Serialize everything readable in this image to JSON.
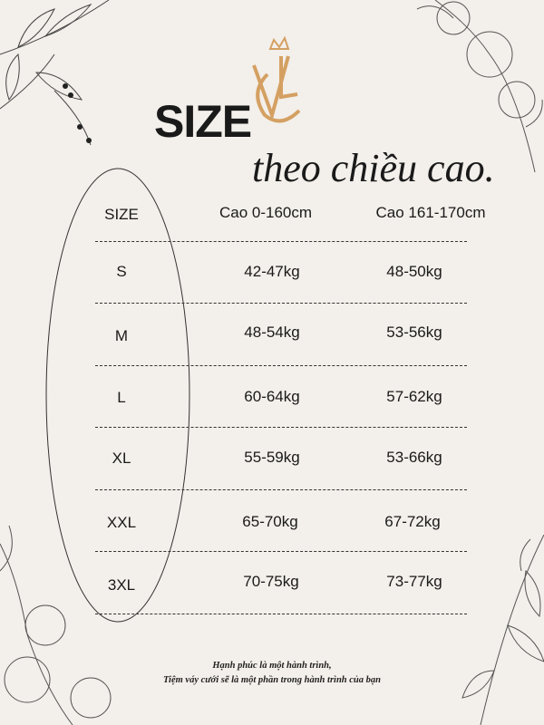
{
  "logo": {
    "text": "VC",
    "color": "#d4a062"
  },
  "title": "SIZE",
  "subtitle": "theo chiều cao.",
  "table": {
    "headers": [
      "SIZE",
      "Cao 0-160cm",
      "Cao 161-170cm"
    ],
    "rows": [
      {
        "size": "S",
        "col1": "42-47kg",
        "col2": "48-50kg"
      },
      {
        "size": "M",
        "col1": "48-54kg",
        "col2": "53-56kg"
      },
      {
        "size": "L",
        "col1": "60-64kg",
        "col2": "57-62kg"
      },
      {
        "size": "XL",
        "col1": "55-59kg",
        "col2": "53-66kg"
      },
      {
        "size": "XXL",
        "col1": "65-70kg",
        "col2": "67-72kg"
      },
      {
        "size": "3XL",
        "col1": "70-75kg",
        "col2": "73-77kg"
      }
    ]
  },
  "footer": {
    "line1": "Hạnh phúc là một hành trình,",
    "line2": "Tiệm váy cưới sẽ là một phần trong hành trình của bạn"
  }
}
